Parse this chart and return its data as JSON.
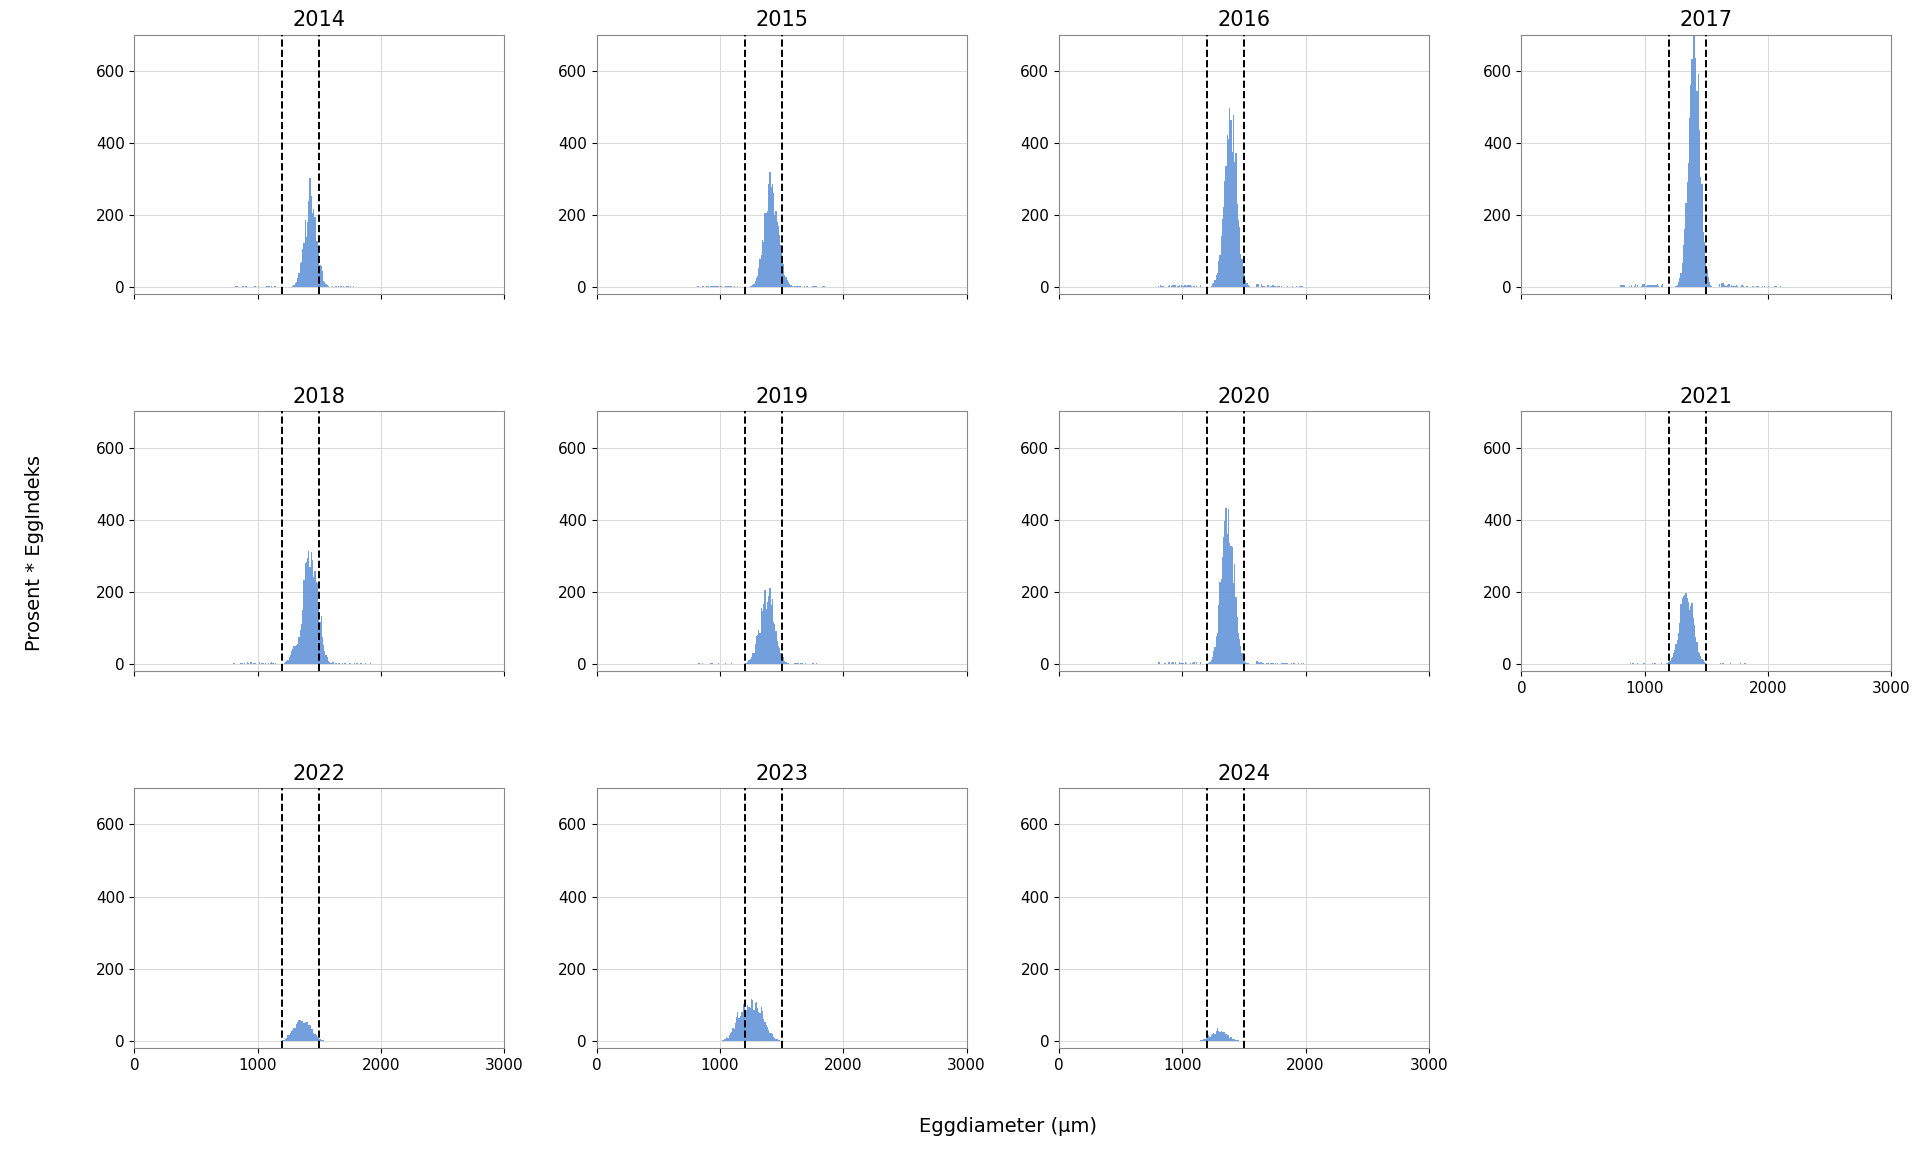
{
  "years": [
    "2014",
    "2015",
    "2016",
    "2017",
    "2018",
    "2019",
    "2020",
    "2021",
    "2022",
    "2023",
    "2024"
  ],
  "xlim": [
    0,
    3000
  ],
  "ylim": [
    -20,
    700
  ],
  "yticks": [
    0,
    200,
    400,
    600
  ],
  "xticks": [
    0,
    1000,
    2000,
    3000
  ],
  "dashed_lines": [
    1200,
    1500
  ],
  "xlabel": "Eggdiameter (μm)",
  "ylabel": "Prosent * EggIndeks",
  "bar_color": "#5B8ED6",
  "header_bg": "#e8e8e8",
  "grid_color": "#d9d9d9",
  "title_fontsize": 15,
  "label_fontsize": 14,
  "tick_fontsize": 11,
  "peak_positions": {
    "2014": 1430,
    "2015": 1420,
    "2016": 1390,
    "2017": 1400,
    "2018": 1430,
    "2019": 1380,
    "2020": 1370,
    "2021": 1340,
    "2022": 1380,
    "2023": 1290,
    "2024": 1300
  },
  "peak_heights": {
    "2014": 230,
    "2015": 290,
    "2016": 450,
    "2017": 640,
    "2018": 330,
    "2019": 190,
    "2020": 430,
    "2021": 200,
    "2022": 50,
    "2023": 100,
    "2024": 30
  },
  "spread": {
    "2014": 50,
    "2015": 55,
    "2016": 50,
    "2017": 45,
    "2018": 55,
    "2019": 60,
    "2020": 50,
    "2021": 55,
    "2022": 60,
    "2023": 70,
    "2024": 65
  },
  "bin_width": 10
}
